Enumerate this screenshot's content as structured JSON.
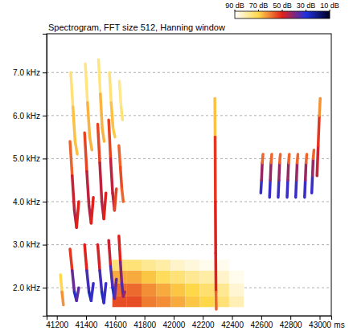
{
  "chart_data": {
    "type": "heatmap",
    "title": "Spectrogram, FFT size 512, Hanning window",
    "x_label": "ms",
    "xlim": [
      41130,
      43080
    ],
    "xticks": [
      41200,
      41400,
      41600,
      41800,
      42000,
      42200,
      42400,
      42600,
      42800,
      43000
    ],
    "ylim": [
      1.35,
      7.9
    ],
    "yticks": [
      {
        "value": 2,
        "label": "2.0 kHz"
      },
      {
        "value": 3,
        "label": "3.0 kHz"
      },
      {
        "value": 4,
        "label": "4.0 kHz"
      },
      {
        "value": 5,
        "label": "5.0 kHz"
      },
      {
        "value": 6,
        "label": "6.0 kHz"
      },
      {
        "value": 7,
        "label": "7.0 kHz"
      }
    ],
    "grid": true,
    "colorbar": {
      "range": [
        90,
        10
      ],
      "ticks": [
        {
          "value": 90,
          "label": "90 dB"
        },
        {
          "value": 70,
          "label": "70 dB"
        },
        {
          "value": 50,
          "label": "50 dB"
        },
        {
          "value": 30,
          "label": "30 dB"
        },
        {
          "value": 10,
          "label": "10 dB"
        }
      ]
    },
    "cells": [
      [
        41580,
        41680,
        1.55,
        1.8,
        55
      ],
      [
        41680,
        41780,
        1.55,
        1.8,
        55
      ],
      [
        41780,
        41880,
        1.55,
        1.8,
        60
      ],
      [
        41880,
        41980,
        1.55,
        1.8,
        62
      ],
      [
        41980,
        42080,
        1.55,
        1.8,
        65
      ],
      [
        42080,
        42180,
        1.55,
        1.8,
        68
      ],
      [
        42180,
        42280,
        1.55,
        1.8,
        70
      ],
      [
        42280,
        42380,
        1.55,
        1.8,
        75
      ],
      [
        42380,
        42480,
        1.55,
        1.8,
        82
      ],
      [
        41580,
        41680,
        1.8,
        2.1,
        58
      ],
      [
        41680,
        41780,
        1.8,
        2.1,
        58
      ],
      [
        41780,
        41880,
        1.8,
        2.1,
        62
      ],
      [
        41880,
        41980,
        1.8,
        2.1,
        65
      ],
      [
        41980,
        42080,
        1.8,
        2.1,
        68
      ],
      [
        42080,
        42180,
        1.8,
        2.1,
        70
      ],
      [
        42180,
        42280,
        1.8,
        2.1,
        74
      ],
      [
        42280,
        42380,
        1.8,
        2.1,
        78
      ],
      [
        42380,
        42480,
        1.8,
        2.1,
        85
      ],
      [
        41580,
        41680,
        2.1,
        2.4,
        65
      ],
      [
        41680,
        41780,
        2.1,
        2.4,
        65
      ],
      [
        41780,
        41880,
        2.1,
        2.4,
        68
      ],
      [
        41880,
        41980,
        2.1,
        2.4,
        72
      ],
      [
        41980,
        42080,
        2.1,
        2.4,
        75
      ],
      [
        42080,
        42180,
        2.1,
        2.4,
        78
      ],
      [
        42180,
        42280,
        2.1,
        2.4,
        80
      ],
      [
        42280,
        42380,
        2.1,
        2.4,
        84
      ],
      [
        42380,
        42480,
        2.1,
        2.4,
        88
      ],
      [
        41580,
        41680,
        2.4,
        2.65,
        75
      ],
      [
        41680,
        41780,
        2.4,
        2.65,
        75
      ],
      [
        41780,
        41880,
        2.4,
        2.65,
        78
      ],
      [
        41880,
        41980,
        2.4,
        2.65,
        80
      ],
      [
        41980,
        42080,
        2.4,
        2.65,
        84
      ],
      [
        42080,
        42180,
        2.4,
        2.65,
        86
      ],
      [
        42180,
        42280,
        2.4,
        2.65,
        88
      ],
      [
        42280,
        42380,
        2.4,
        2.65,
        88
      ],
      [
        42380,
        42480,
        2.4,
        2.65,
        90
      ]
    ],
    "traces": [
      [
        [
          41225,
          2.3,
          75
        ],
        [
          41235,
          1.9,
          65
        ],
        [
          41245,
          1.6,
          60
        ]
      ],
      [
        [
          41290,
          2.9,
          60
        ],
        [
          41305,
          2.4,
          45
        ],
        [
          41320,
          1.9,
          30
        ],
        [
          41335,
          1.7,
          28
        ],
        [
          41350,
          2.0,
          45
        ]
      ],
      [
        [
          41290,
          5.4,
          65
        ],
        [
          41305,
          4.6,
          50
        ],
        [
          41320,
          3.8,
          45
        ],
        [
          41335,
          3.4,
          45
        ],
        [
          41350,
          4.0,
          55
        ]
      ],
      [
        [
          41295,
          7.0,
          80
        ],
        [
          41310,
          6.2,
          70
        ],
        [
          41325,
          5.4,
          65
        ],
        [
          41340,
          5.1,
          70
        ]
      ],
      [
        [
          41390,
          3.0,
          60
        ],
        [
          41405,
          2.4,
          40
        ],
        [
          41420,
          1.9,
          28
        ],
        [
          41435,
          1.7,
          25
        ],
        [
          41450,
          2.1,
          40
        ]
      ],
      [
        [
          41390,
          5.6,
          60
        ],
        [
          41405,
          4.7,
          48
        ],
        [
          41420,
          3.9,
          45
        ],
        [
          41435,
          3.5,
          45
        ],
        [
          41450,
          4.1,
          55
        ]
      ],
      [
        [
          41395,
          7.2,
          82
        ],
        [
          41410,
          6.3,
          70
        ],
        [
          41425,
          5.5,
          62
        ],
        [
          41440,
          5.2,
          70
        ]
      ],
      [
        [
          41480,
          3.0,
          58
        ],
        [
          41494,
          2.4,
          40
        ],
        [
          41508,
          1.9,
          28
        ],
        [
          41522,
          1.65,
          25
        ],
        [
          41536,
          2.1,
          40
        ]
      ],
      [
        [
          41480,
          5.8,
          60
        ],
        [
          41494,
          4.9,
          48
        ],
        [
          41508,
          4.0,
          45
        ],
        [
          41522,
          3.6,
          45
        ],
        [
          41536,
          4.2,
          55
        ]
      ],
      [
        [
          41485,
          7.3,
          82
        ],
        [
          41498,
          6.5,
          70
        ],
        [
          41511,
          5.7,
          62
        ],
        [
          41524,
          5.4,
          70
        ]
      ],
      [
        [
          41555,
          3.1,
          55
        ],
        [
          41568,
          2.5,
          40
        ],
        [
          41582,
          2.0,
          30
        ],
        [
          41595,
          1.75,
          28
        ],
        [
          41608,
          2.2,
          45
        ]
      ],
      [
        [
          41555,
          5.9,
          60
        ],
        [
          41568,
          5.0,
          48
        ],
        [
          41582,
          4.2,
          45
        ],
        [
          41595,
          3.8,
          48
        ],
        [
          41608,
          4.3,
          60
        ]
      ],
      [
        [
          41560,
          7.0,
          80
        ],
        [
          41572,
          6.3,
          70
        ],
        [
          41585,
          5.7,
          65
        ],
        [
          41598,
          5.5,
          72
        ]
      ],
      [
        [
          41625,
          3.2,
          55
        ],
        [
          41635,
          2.6,
          45
        ],
        [
          41645,
          2.1,
          35
        ],
        [
          41655,
          1.8,
          35
        ],
        [
          41665,
          1.9,
          50
        ]
      ],
      [
        [
          41625,
          5.3,
          60
        ],
        [
          41635,
          4.8,
          55
        ],
        [
          41645,
          4.3,
          55
        ],
        [
          41655,
          4.0,
          60
        ]
      ],
      [
        [
          41628,
          6.8,
          80
        ],
        [
          41640,
          6.2,
          75
        ],
        [
          41650,
          5.9,
          75
        ]
      ],
      [
        [
          42282,
          6.4,
          80
        ],
        [
          42284,
          5.5,
          55
        ],
        [
          42286,
          4.0,
          50
        ],
        [
          42288,
          2.8,
          50
        ],
        [
          42290,
          1.9,
          50
        ],
        [
          42292,
          1.5,
          65
        ]
      ],
      [
        [
          42597,
          4.2,
          30
        ],
        [
          42602,
          4.5,
          35
        ],
        [
          42607,
          4.9,
          50
        ],
        [
          42612,
          5.1,
          65
        ]
      ],
      [
        [
          42657,
          4.1,
          30
        ],
        [
          42662,
          4.5,
          35
        ],
        [
          42667,
          4.9,
          50
        ],
        [
          42672,
          5.1,
          65
        ]
      ],
      [
        [
          42716,
          4.1,
          30
        ],
        [
          42721,
          4.5,
          35
        ],
        [
          42726,
          4.9,
          50
        ],
        [
          42731,
          5.1,
          65
        ]
      ],
      [
        [
          42777,
          4.1,
          30
        ],
        [
          42782,
          4.5,
          35
        ],
        [
          42787,
          4.9,
          50
        ],
        [
          42792,
          5.1,
          65
        ]
      ],
      [
        [
          42836,
          4.1,
          30
        ],
        [
          42841,
          4.5,
          35
        ],
        [
          42846,
          4.9,
          50
        ],
        [
          42851,
          5.1,
          65
        ]
      ],
      [
        [
          42897,
          4.1,
          30
        ],
        [
          42902,
          4.5,
          35
        ],
        [
          42907,
          4.9,
          50
        ],
        [
          42912,
          5.1,
          65
        ]
      ],
      [
        [
          42946,
          4.2,
          30
        ],
        [
          42951,
          4.6,
          35
        ],
        [
          42956,
          5.0,
          50
        ],
        [
          42961,
          5.2,
          65
        ]
      ],
      [
        [
          42982,
          4.6,
          45
        ],
        [
          42990,
          5.3,
          50
        ],
        [
          42998,
          6.0,
          55
        ],
        [
          43004,
          6.4,
          70
        ]
      ]
    ]
  }
}
